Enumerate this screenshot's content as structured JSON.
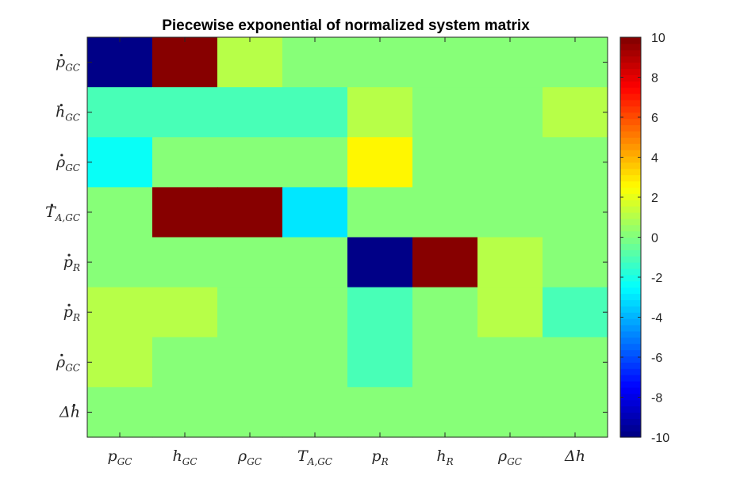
{
  "chart_data": {
    "type": "heatmap",
    "title": "Piecewise exponential of normalized system matrix",
    "row_labels": [
      {
        "base": "p",
        "sub": "GC",
        "dot": true,
        "hat": false
      },
      {
        "base": "h",
        "sub": "GC",
        "dot": true,
        "hat": false
      },
      {
        "base": "ρ",
        "sub": "GC",
        "dot": true,
        "hat": false
      },
      {
        "base": "T",
        "sub": "A,GC",
        "dot": true,
        "hat": false
      },
      {
        "base": "p",
        "sub": "R",
        "dot": true,
        "hat": false
      },
      {
        "base": "p",
        "sub": "R",
        "dot": true,
        "hat": false
      },
      {
        "base": "ρ",
        "sub": "GC",
        "dot": true,
        "hat": false
      },
      {
        "base": "Δh",
        "sub": "",
        "dot": true,
        "hat": false
      }
    ],
    "col_labels": [
      {
        "base": "p",
        "sub": "GC"
      },
      {
        "base": "h",
        "sub": "GC"
      },
      {
        "base": "ρ",
        "sub": "GC"
      },
      {
        "base": "T",
        "sub": "A,GC"
      },
      {
        "base": "p",
        "sub": "R"
      },
      {
        "base": "h",
        "sub": "R"
      },
      {
        "base": "ρ",
        "sub": "GC"
      },
      {
        "base": "Δh",
        "sub": ""
      }
    ],
    "values": [
      [
        -10,
        10,
        1,
        0,
        0,
        0,
        0,
        0
      ],
      [
        -1,
        -1,
        -1,
        -1,
        1,
        0,
        0,
        1
      ],
      [
        -2.5,
        0,
        0,
        0,
        2.5,
        0,
        0,
        0
      ],
      [
        0,
        10,
        10,
        -3,
        0,
        0,
        0,
        0
      ],
      [
        0,
        0,
        0,
        0,
        -10,
        10,
        1,
        0
      ],
      [
        1,
        1,
        0,
        0,
        -1,
        0,
        1,
        -1
      ],
      [
        1,
        0,
        0,
        0,
        -1,
        0,
        0,
        0
      ],
      [
        0,
        0,
        0,
        0,
        0,
        0,
        0,
        0
      ]
    ],
    "colormap": "jet",
    "clim": [
      -10,
      10
    ],
    "colorbar": {
      "ticks": [
        10,
        8,
        6,
        4,
        2,
        0,
        -2,
        -4,
        -6,
        -8,
        -10
      ],
      "placement": "right"
    }
  }
}
